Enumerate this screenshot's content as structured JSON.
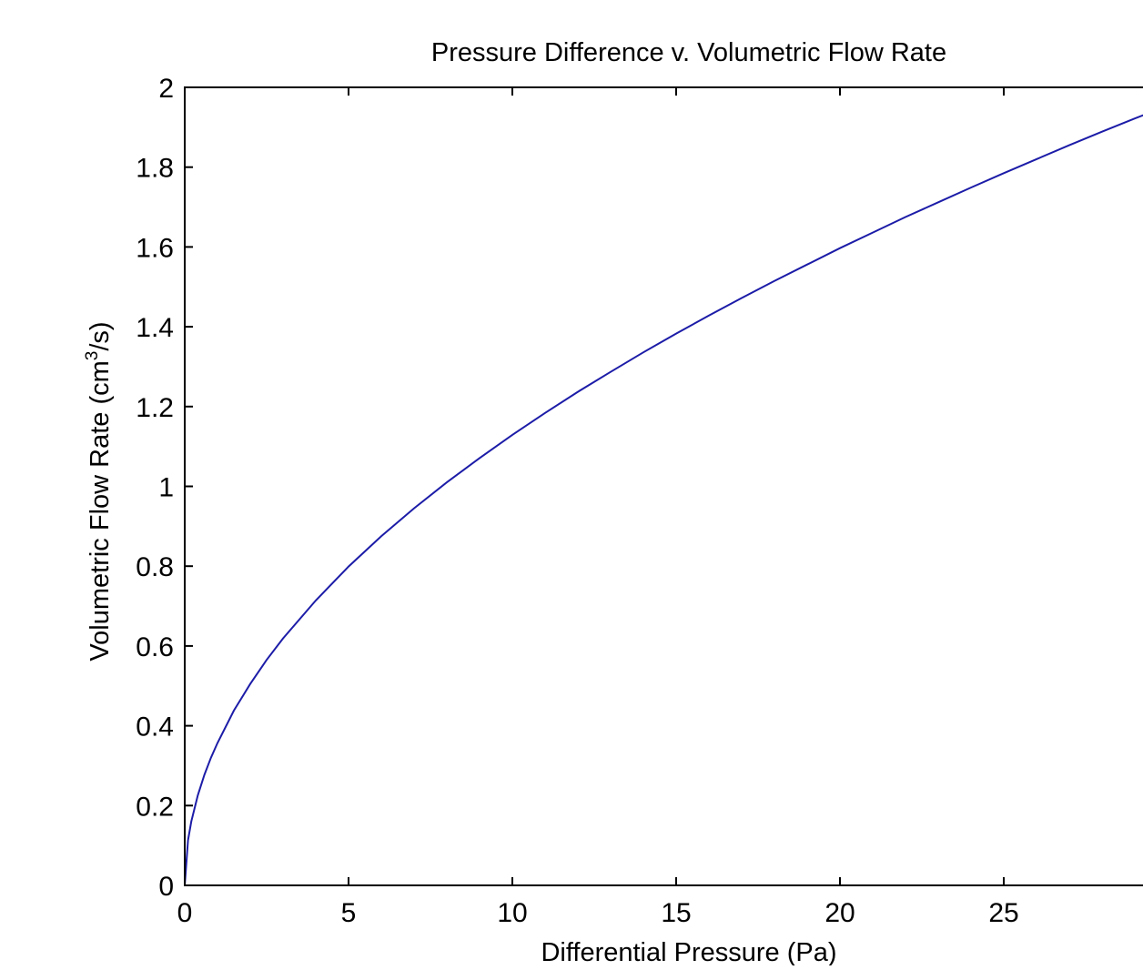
{
  "chart_data": {
    "type": "line",
    "title": "Pressure Difference v. Volumetric Flow Rate",
    "xlabel": "Differential Pressure (Pa)",
    "ylabel_prefix": "Volumetric Flow Rate (cm",
    "ylabel_sup": "3",
    "ylabel_suffix": "/s)",
    "xlim": [
      0,
      30
    ],
    "ylim": [
      0,
      2
    ],
    "xticks": [
      0,
      5,
      10,
      15,
      20,
      25
    ],
    "xtick_labels": [
      "0",
      "5",
      "10",
      "15",
      "20",
      "25"
    ],
    "yticks": [
      0,
      0.2,
      0.4,
      0.6,
      0.8,
      1,
      1.2,
      1.4,
      1.6,
      1.8,
      2
    ],
    "ytick_labels": [
      "0",
      "0.2",
      "0.4",
      "0.6",
      "0.8",
      "1",
      "1.2",
      "1.4",
      "1.6",
      "1.8",
      "2"
    ],
    "grid": false,
    "series": [
      {
        "color": "#1c1ca8",
        "x": [
          0,
          0.1,
          0.2,
          0.4,
          0.6,
          0.8,
          1,
          1.5,
          2,
          2.5,
          3,
          4,
          5,
          6,
          7,
          8,
          9,
          10,
          11,
          12,
          13,
          14,
          15,
          16,
          17,
          18,
          19,
          20,
          21,
          22,
          23,
          24,
          25,
          26,
          27,
          28,
          29,
          30
        ],
        "y": [
          0,
          0.113,
          0.16,
          0.226,
          0.277,
          0.32,
          0.357,
          0.438,
          0.505,
          0.565,
          0.619,
          0.714,
          0.799,
          0.875,
          0.945,
          1.01,
          1.071,
          1.129,
          1.184,
          1.237,
          1.287,
          1.336,
          1.383,
          1.428,
          1.472,
          1.515,
          1.556,
          1.597,
          1.636,
          1.675,
          1.712,
          1.749,
          1.785,
          1.82,
          1.855,
          1.889,
          1.922,
          1.954
        ]
      }
    ]
  }
}
